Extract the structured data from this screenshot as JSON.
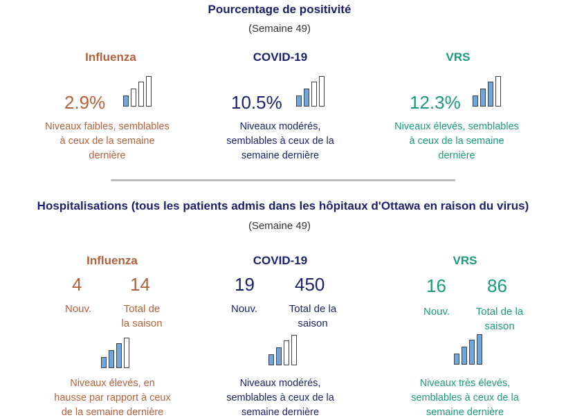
{
  "positivity": {
    "title": "Pourcentage de positivité",
    "week": "(Semaine 49)",
    "cards": [
      {
        "name": "Influenza",
        "value": "2.9%",
        "desc": [
          "Niveaux faibles, semblables",
          "à ceux de la semaine",
          "dernière"
        ],
        "filled_bars": 1
      },
      {
        "name": "COVID-19",
        "value": "10.5%",
        "desc": [
          "Niveaux modérés,",
          "semblables à ceux de la",
          "semaine dernière"
        ],
        "filled_bars": 2
      },
      {
        "name": "VRS",
        "value": "12.3%",
        "desc": [
          "Niveaux élevés, semblables",
          "à ceux de la semaine",
          "dernière"
        ],
        "filled_bars": 3
      }
    ]
  },
  "hospitalizations": {
    "title": "Hospitalisations (tous les patients admis dans les hôpitaux d'Ottawa en raison du virus)",
    "week": "(Semaine 49)",
    "cards": [
      {
        "name": "Influenza",
        "new": "4",
        "total": "14",
        "new_label": "Nouv.",
        "total_label": [
          "Total de",
          "la saison"
        ],
        "desc": [
          "Niveaux élevés,  en",
          "hausse par rapport à ceux",
          "de la semaine dernière"
        ],
        "filled_bars": 3
      },
      {
        "name": "COVID-19",
        "new": "19",
        "total": "450",
        "new_label": "Nouv.",
        "total_label": [
          "Total de la",
          "saison"
        ],
        "desc": [
          "Niveaux modérés,",
          "semblables à ceux de la",
          "semaine dernière"
        ],
        "filled_bars": 2
      },
      {
        "name": "VRS",
        "new": "16",
        "total": "86",
        "new_label": "Nouv.",
        "total_label": [
          "Total de la",
          "saison"
        ],
        "desc": [
          "Niveaux très élevés,",
          "semblables à ceux de la",
          "semaine dernière"
        ],
        "filled_bars": 4
      }
    ]
  },
  "colors": {
    "influenza": "#b5603a",
    "covid": "#1a1f6e",
    "vrs": "#1a9a7c",
    "bar_fill": "#6ea6dd"
  },
  "icons": {
    "level": "bar-level-icon"
  }
}
